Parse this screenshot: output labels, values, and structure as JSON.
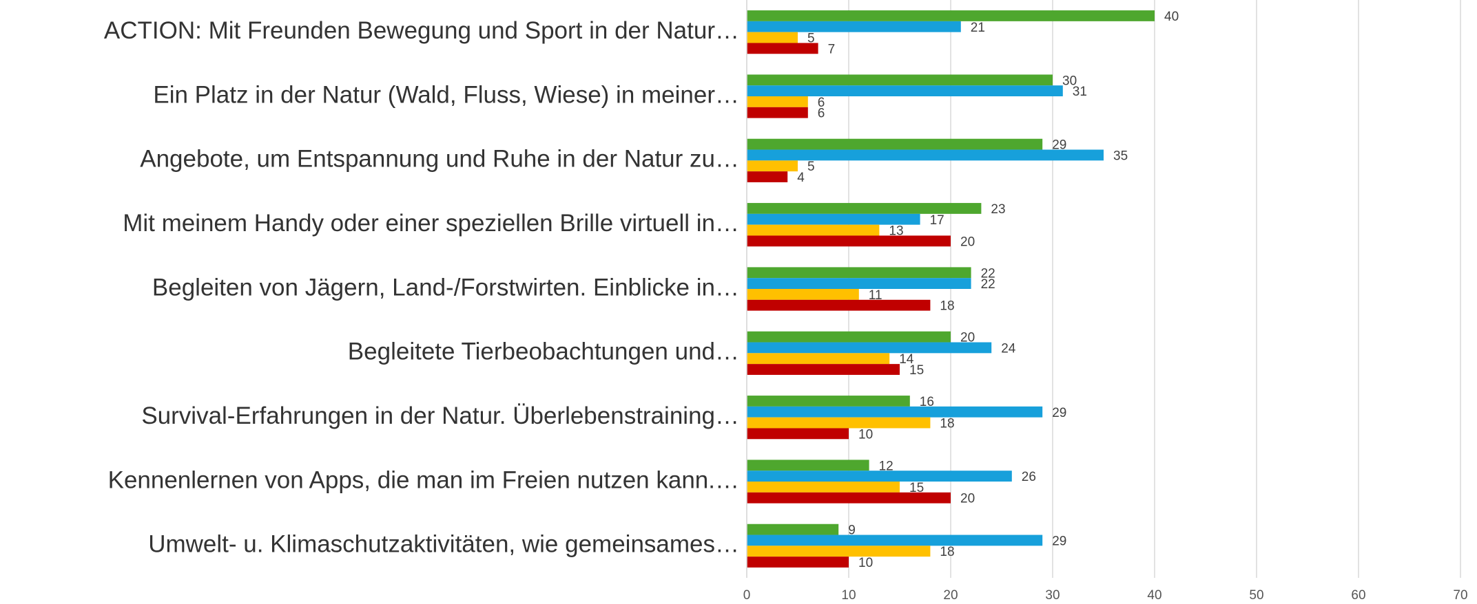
{
  "chart_data": {
    "type": "barh",
    "categories": [
      "ACTION: Mit Freunden Bewegung und Sport in der Natur…",
      "Ein Platz in der Natur (Wald, Fluss, Wiese) in meiner…",
      "Angebote, um Entspannung und Ruhe in der Natur zu…",
      "Mit meinem Handy oder einer speziellen Brille virtuell in…",
      "Begleiten von Jägern, Land-/Forstwirten. Einblicke in…",
      "Begleitete Tierbeobachtungen und…",
      "Survival-Erfahrungen in der Natur. Überlebenstraining…",
      "Kennenlernen von Apps, die man im Freien nutzen kann.…",
      "Umwelt- u. Klimaschutzaktivitäten, wie gemeinsames…"
    ],
    "series": [
      {
        "color": "#4ea72e",
        "values": [
          40,
          30,
          29,
          23,
          22,
          20,
          16,
          12,
          9
        ]
      },
      {
        "color": "#17a0db",
        "values": [
          21,
          31,
          35,
          17,
          22,
          24,
          29,
          26,
          29
        ]
      },
      {
        "color": "#ffc000",
        "values": [
          5,
          6,
          5,
          13,
          11,
          14,
          18,
          15,
          18
        ]
      },
      {
        "color": "#c00000",
        "values": [
          7,
          6,
          4,
          20,
          18,
          15,
          10,
          20,
          10
        ]
      }
    ],
    "xlim": [
      0,
      70
    ],
    "xticks": [
      0,
      10,
      20,
      30,
      40,
      50,
      60,
      70
    ],
    "grid": true
  }
}
